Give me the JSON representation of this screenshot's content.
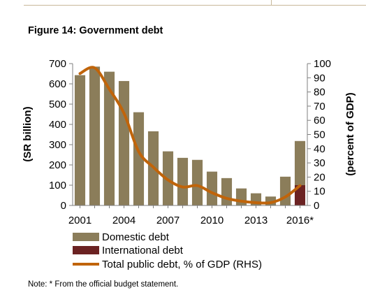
{
  "figure": {
    "title": "Figure 14: Government debt",
    "note": "Note: * From the official budget statement."
  },
  "chart_data": {
    "type": "bar",
    "categories": [
      "2001",
      "2002",
      "2003",
      "2004",
      "2005",
      "2006",
      "2007",
      "2008",
      "2009",
      "2010",
      "2011",
      "2012",
      "2013",
      "2014",
      "2015",
      "2016*"
    ],
    "x_tick_labels": [
      "2001",
      "2004",
      "2007",
      "2010",
      "2013",
      "2016*"
    ],
    "series": [
      {
        "name": "Domestic debt",
        "type": "bar",
        "axis": "left",
        "color": "#8b7d5a",
        "values": [
          643,
          685,
          660,
          614,
          460,
          366,
          267,
          235,
          225,
          167,
          135,
          84,
          60,
          44,
          142,
          218
        ]
      },
      {
        "name": "International debt",
        "type": "bar",
        "axis": "left",
        "color": "#6b2222",
        "values": [
          0,
          0,
          0,
          0,
          0,
          0,
          0,
          0,
          0,
          0,
          0,
          0,
          0,
          0,
          0,
          100
        ]
      },
      {
        "name": "Total public debt, % of GDP (RHS)",
        "type": "line",
        "axis": "right",
        "color": "#c0640a",
        "values": [
          93,
          97,
          82,
          65,
          38,
          27,
          18,
          13,
          14,
          9,
          5,
          3,
          2,
          2,
          6,
          14
        ]
      }
    ],
    "y_left": {
      "label": "(SR billion)",
      "min": 0,
      "max": 700,
      "ticks": [
        0,
        100,
        200,
        300,
        400,
        500,
        600,
        700
      ]
    },
    "y_right": {
      "label": "(percent of GDP)",
      "min": 0,
      "max": 100,
      "ticks": [
        0,
        10,
        20,
        30,
        40,
        50,
        60,
        70,
        80,
        90,
        100
      ]
    },
    "grid": false,
    "legend_position": "bottom"
  }
}
